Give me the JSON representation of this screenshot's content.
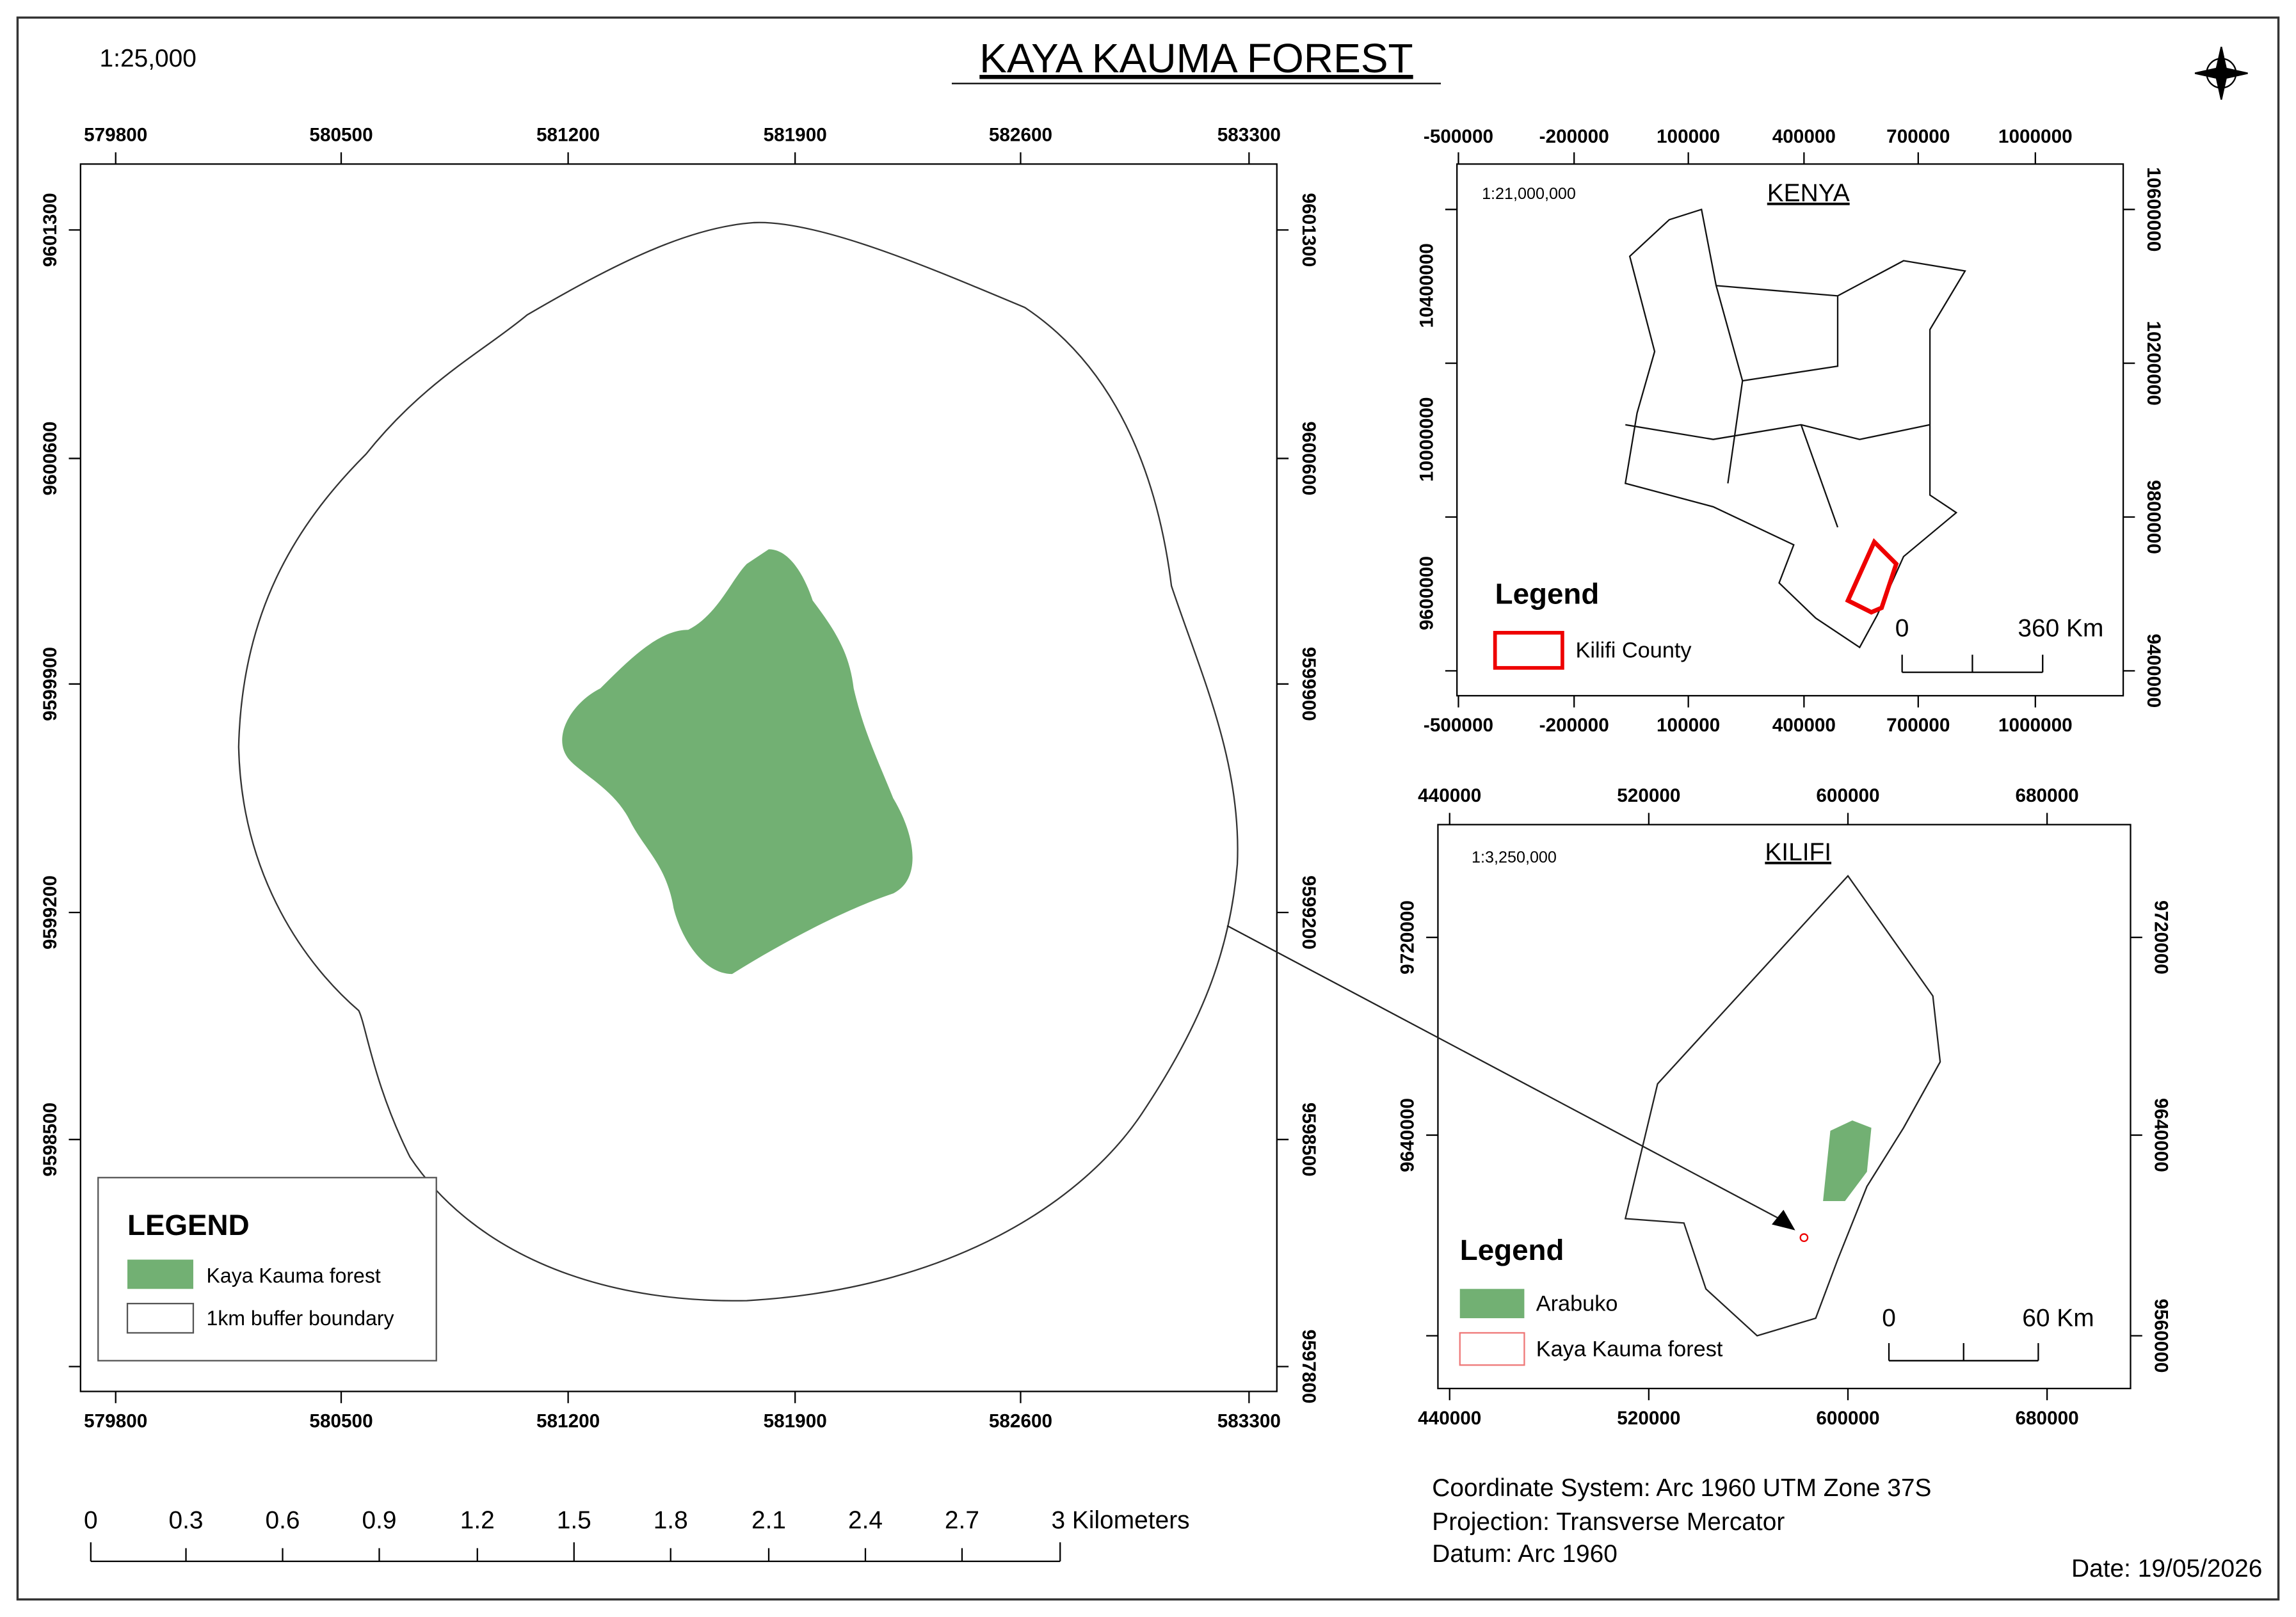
{
  "main_map": {
    "title": "KAYA KAUMA FOREST",
    "scale": "1:25,000",
    "x_ticks": [
      "579800",
      "580500",
      "581200",
      "581900",
      "582600",
      "583300"
    ],
    "y_ticks": [
      "9601300",
      "9600600",
      "9599900",
      "9599200",
      "9598500",
      "9597800"
    ],
    "legend": {
      "title": "LEGEND",
      "items": [
        "Kaya Kauma forest",
        "1km buffer boundary"
      ]
    },
    "scale_bar": [
      "0",
      "0.3",
      "0.6",
      "0.9",
      "1.2",
      "1.5",
      "1.8",
      "2.1",
      "2.4",
      "2.7",
      "3 Kilometers"
    ]
  },
  "kenya_inset": {
    "title": "KENYA",
    "scale": "1:21,000,000",
    "x_ticks": [
      "-500000",
      "-200000",
      "100000",
      "400000",
      "700000",
      "1000000"
    ],
    "y_ticks_left": [
      "10400000",
      "10000000",
      "9600000"
    ],
    "y_ticks_right": [
      "10600000",
      "10200000",
      "9800000",
      "9400000"
    ],
    "legend": {
      "title": "Legend",
      "items": [
        "Kilifi County"
      ]
    },
    "scale_bar": [
      "0",
      "360 Km"
    ]
  },
  "kilifi_inset": {
    "title": "KILIFI",
    "scale": "1:3,250,000",
    "x_ticks": [
      "440000",
      "520000",
      "600000",
      "680000"
    ],
    "y_ticks_left": [
      "9720000",
      "9640000"
    ],
    "y_ticks_right": [
      "9720000",
      "9640000",
      "9560000"
    ],
    "legend": {
      "title": "Legend",
      "items": [
        "Arabuko",
        "Kaya Kauma forest"
      ]
    },
    "scale_bar": [
      "0",
      "60 Km"
    ]
  },
  "footer": {
    "coordinate_system": "Coordinate System: Arc 1960 UTM Zone 37S",
    "projection": "Projection: Transverse Mercator",
    "datum": "Datum: Arc 1960",
    "date": "Date: 19/05/2026"
  }
}
